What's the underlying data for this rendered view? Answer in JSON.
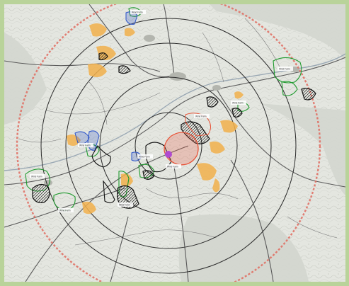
{
  "map": {
    "colors": {
      "frame": "#b9d39a",
      "paper": "#e4e6e0",
      "road": "#5a5a5a",
      "range_ring": "#2b2b2b",
      "outer_ring": "#e06a5e",
      "site_green": "#1f9a2e",
      "site_blue": "#2a52c9",
      "site_black": "#111111",
      "site_red": "#e8553a",
      "site_orange": "#f2b04c",
      "site_purple": "#b04ad0"
    },
    "range_rings": 4,
    "outer_ring_style": "dashed",
    "labels": [
      "Wind Farm",
      "Wind Farm",
      "Wind Farm",
      "Wind Farm",
      "Wind Farm",
      "Wind Farm",
      "Wind Farm",
      "Wind Farm",
      "Wind Farm",
      "Wind Farm"
    ]
  }
}
